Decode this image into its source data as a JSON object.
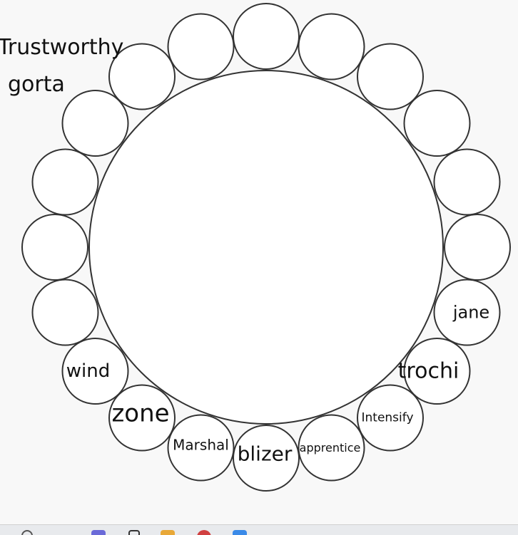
{
  "floating_words": [
    "Trustworthy",
    "gorta"
  ],
  "slots": [
    {
      "label": ""
    },
    {
      "label": ""
    },
    {
      "label": ""
    },
    {
      "label": ""
    },
    {
      "label": ""
    },
    {
      "label": "jane"
    },
    {
      "label": "trochi"
    },
    {
      "label": "Intensify"
    },
    {
      "label": "apprentice"
    },
    {
      "label": "blizer"
    },
    {
      "label": "Marshal"
    },
    {
      "label": "zone"
    },
    {
      "label": "wind"
    },
    {
      "label": ""
    },
    {
      "label": ""
    },
    {
      "label": ""
    },
    {
      "label": ""
    },
    {
      "label": ""
    },
    {
      "label": ""
    },
    {
      "label": ""
    }
  ],
  "taskbar": {
    "icons": [
      "search-icon",
      "purple-app-icon",
      "phone-icon",
      "folder-icon",
      "red-app-icon",
      "blue-app-icon"
    ],
    "colors": [
      "#555555",
      "#6a6ad8",
      "#333333",
      "#e8a838",
      "#d04040",
      "#3a8ae8"
    ]
  }
}
